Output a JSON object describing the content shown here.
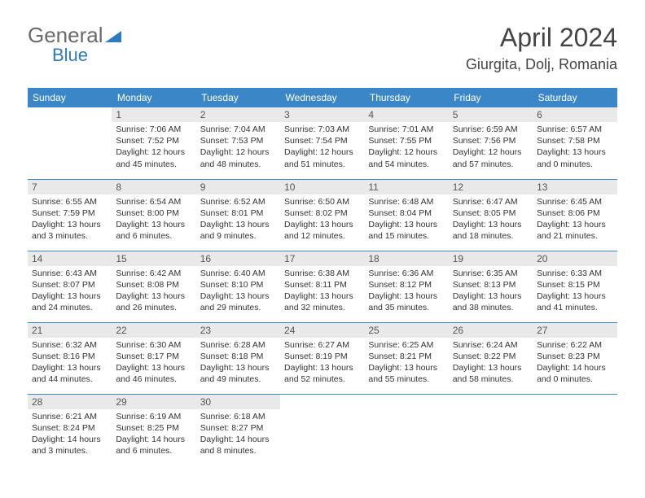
{
  "logo": {
    "line1": "General",
    "line2": "Blue"
  },
  "title": "April 2024",
  "location": "Giurgita, Dolj, Romania",
  "colors": {
    "header_bg": "#3b86c6",
    "header_text": "#ffffff",
    "daynum_bg": "#e9e9e9",
    "cell_border": "#3b86c6",
    "logo_gray": "#6b6b6b",
    "logo_blue": "#2f7bbf",
    "title_color": "#444444",
    "body_text": "#333333"
  },
  "weekdays": [
    "Sunday",
    "Monday",
    "Tuesday",
    "Wednesday",
    "Thursday",
    "Friday",
    "Saturday"
  ],
  "weeks": [
    [
      null,
      {
        "n": "1",
        "sr": "Sunrise: 7:06 AM",
        "ss": "Sunset: 7:52 PM",
        "dl": "Daylight: 12 hours and 45 minutes."
      },
      {
        "n": "2",
        "sr": "Sunrise: 7:04 AM",
        "ss": "Sunset: 7:53 PM",
        "dl": "Daylight: 12 hours and 48 minutes."
      },
      {
        "n": "3",
        "sr": "Sunrise: 7:03 AM",
        "ss": "Sunset: 7:54 PM",
        "dl": "Daylight: 12 hours and 51 minutes."
      },
      {
        "n": "4",
        "sr": "Sunrise: 7:01 AM",
        "ss": "Sunset: 7:55 PM",
        "dl": "Daylight: 12 hours and 54 minutes."
      },
      {
        "n": "5",
        "sr": "Sunrise: 6:59 AM",
        "ss": "Sunset: 7:56 PM",
        "dl": "Daylight: 12 hours and 57 minutes."
      },
      {
        "n": "6",
        "sr": "Sunrise: 6:57 AM",
        "ss": "Sunset: 7:58 PM",
        "dl": "Daylight: 13 hours and 0 minutes."
      }
    ],
    [
      {
        "n": "7",
        "sr": "Sunrise: 6:55 AM",
        "ss": "Sunset: 7:59 PM",
        "dl": "Daylight: 13 hours and 3 minutes."
      },
      {
        "n": "8",
        "sr": "Sunrise: 6:54 AM",
        "ss": "Sunset: 8:00 PM",
        "dl": "Daylight: 13 hours and 6 minutes."
      },
      {
        "n": "9",
        "sr": "Sunrise: 6:52 AM",
        "ss": "Sunset: 8:01 PM",
        "dl": "Daylight: 13 hours and 9 minutes."
      },
      {
        "n": "10",
        "sr": "Sunrise: 6:50 AM",
        "ss": "Sunset: 8:02 PM",
        "dl": "Daylight: 13 hours and 12 minutes."
      },
      {
        "n": "11",
        "sr": "Sunrise: 6:48 AM",
        "ss": "Sunset: 8:04 PM",
        "dl": "Daylight: 13 hours and 15 minutes."
      },
      {
        "n": "12",
        "sr": "Sunrise: 6:47 AM",
        "ss": "Sunset: 8:05 PM",
        "dl": "Daylight: 13 hours and 18 minutes."
      },
      {
        "n": "13",
        "sr": "Sunrise: 6:45 AM",
        "ss": "Sunset: 8:06 PM",
        "dl": "Daylight: 13 hours and 21 minutes."
      }
    ],
    [
      {
        "n": "14",
        "sr": "Sunrise: 6:43 AM",
        "ss": "Sunset: 8:07 PM",
        "dl": "Daylight: 13 hours and 24 minutes."
      },
      {
        "n": "15",
        "sr": "Sunrise: 6:42 AM",
        "ss": "Sunset: 8:08 PM",
        "dl": "Daylight: 13 hours and 26 minutes."
      },
      {
        "n": "16",
        "sr": "Sunrise: 6:40 AM",
        "ss": "Sunset: 8:10 PM",
        "dl": "Daylight: 13 hours and 29 minutes."
      },
      {
        "n": "17",
        "sr": "Sunrise: 6:38 AM",
        "ss": "Sunset: 8:11 PM",
        "dl": "Daylight: 13 hours and 32 minutes."
      },
      {
        "n": "18",
        "sr": "Sunrise: 6:36 AM",
        "ss": "Sunset: 8:12 PM",
        "dl": "Daylight: 13 hours and 35 minutes."
      },
      {
        "n": "19",
        "sr": "Sunrise: 6:35 AM",
        "ss": "Sunset: 8:13 PM",
        "dl": "Daylight: 13 hours and 38 minutes."
      },
      {
        "n": "20",
        "sr": "Sunrise: 6:33 AM",
        "ss": "Sunset: 8:15 PM",
        "dl": "Daylight: 13 hours and 41 minutes."
      }
    ],
    [
      {
        "n": "21",
        "sr": "Sunrise: 6:32 AM",
        "ss": "Sunset: 8:16 PM",
        "dl": "Daylight: 13 hours and 44 minutes."
      },
      {
        "n": "22",
        "sr": "Sunrise: 6:30 AM",
        "ss": "Sunset: 8:17 PM",
        "dl": "Daylight: 13 hours and 46 minutes."
      },
      {
        "n": "23",
        "sr": "Sunrise: 6:28 AM",
        "ss": "Sunset: 8:18 PM",
        "dl": "Daylight: 13 hours and 49 minutes."
      },
      {
        "n": "24",
        "sr": "Sunrise: 6:27 AM",
        "ss": "Sunset: 8:19 PM",
        "dl": "Daylight: 13 hours and 52 minutes."
      },
      {
        "n": "25",
        "sr": "Sunrise: 6:25 AM",
        "ss": "Sunset: 8:21 PM",
        "dl": "Daylight: 13 hours and 55 minutes."
      },
      {
        "n": "26",
        "sr": "Sunrise: 6:24 AM",
        "ss": "Sunset: 8:22 PM",
        "dl": "Daylight: 13 hours and 58 minutes."
      },
      {
        "n": "27",
        "sr": "Sunrise: 6:22 AM",
        "ss": "Sunset: 8:23 PM",
        "dl": "Daylight: 14 hours and 0 minutes."
      }
    ],
    [
      {
        "n": "28",
        "sr": "Sunrise: 6:21 AM",
        "ss": "Sunset: 8:24 PM",
        "dl": "Daylight: 14 hours and 3 minutes."
      },
      {
        "n": "29",
        "sr": "Sunrise: 6:19 AM",
        "ss": "Sunset: 8:25 PM",
        "dl": "Daylight: 14 hours and 6 minutes."
      },
      {
        "n": "30",
        "sr": "Sunrise: 6:18 AM",
        "ss": "Sunset: 8:27 PM",
        "dl": "Daylight: 14 hours and 8 minutes."
      },
      null,
      null,
      null,
      null
    ]
  ]
}
